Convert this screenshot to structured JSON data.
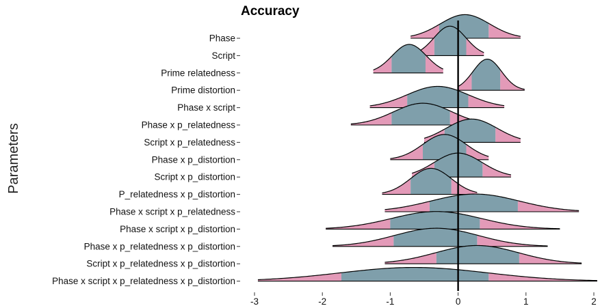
{
  "chart_data": {
    "type": "area",
    "subtype": "ridgeline",
    "title": "Accuracy",
    "xlabel": "",
    "ylabel": "Parameters",
    "xlim": [
      -3.0,
      2.0
    ],
    "xticks": [
      -3,
      -2,
      -1,
      0,
      1,
      2
    ],
    "reference_line_x": 0,
    "grid": false,
    "legend": "none",
    "colors": {
      "fill": "#7f9fab",
      "tail": "#e39ab8",
      "line": "#000000"
    },
    "series": [
      {
        "name": "Phase",
        "mean": 0.1,
        "inner": [
          -0.28,
          0.45
        ],
        "range": [
          -0.7,
          0.92
        ]
      },
      {
        "name": "Script",
        "mean": -0.12,
        "inner": [
          -0.35,
          0.12
        ],
        "range": [
          -0.65,
          0.38
        ]
      },
      {
        "name": "Prime relatedness",
        "mean": -0.72,
        "inner": [
          -0.98,
          -0.48
        ],
        "range": [
          -1.25,
          -0.22
        ]
      },
      {
        "name": "Prime distortion",
        "mean": 0.43,
        "inner": [
          0.2,
          0.62
        ],
        "range": [
          0.0,
          0.98
        ]
      },
      {
        "name": "Phase x script",
        "mean": -0.3,
        "inner": [
          -0.75,
          0.15
        ],
        "range": [
          -1.3,
          0.68
        ]
      },
      {
        "name": "Phase x p_relatedness",
        "mean": -0.52,
        "inner": [
          -0.98,
          -0.12
        ],
        "range": [
          -1.58,
          0.32
        ]
      },
      {
        "name": "Script x p_relatedness",
        "mean": 0.2,
        "inner": [
          -0.2,
          0.55
        ],
        "range": [
          -0.5,
          0.92
        ]
      },
      {
        "name": "Phase x p_distortion",
        "mean": -0.2,
        "inner": [
          -0.52,
          0.12
        ],
        "range": [
          -1.0,
          0.45
        ]
      },
      {
        "name": "Script x p_distortion",
        "mean": 0.0,
        "inner": [
          -0.35,
          0.36
        ],
        "range": [
          -0.68,
          0.78
        ]
      },
      {
        "name": "P_relatedness x p_distortion",
        "mean": -0.4,
        "inner": [
          -0.7,
          -0.1
        ],
        "range": [
          -1.12,
          0.28
        ]
      },
      {
        "name": "Phase x script x p_relatedness",
        "mean": 0.25,
        "inner": [
          -0.42,
          0.88
        ],
        "range": [
          -1.08,
          1.78
        ]
      },
      {
        "name": "Phase x script x p_distortion",
        "mean": -0.32,
        "inner": [
          -1.0,
          0.32
        ],
        "range": [
          -1.95,
          1.5
        ]
      },
      {
        "name": "Phase x p_relatedness x p_distortion",
        "mean": -0.32,
        "inner": [
          -0.95,
          0.28
        ],
        "range": [
          -1.85,
          1.32
        ]
      },
      {
        "name": "Script x p_relatedness x p_distortion",
        "mean": 0.28,
        "inner": [
          -0.32,
          0.9
        ],
        "range": [
          -1.08,
          1.82
        ]
      },
      {
        "name": "Phase x script x p_relatedness x p_distortion",
        "mean": -0.65,
        "inner": [
          -1.72,
          0.45
        ],
        "range": [
          -2.95,
          2.05
        ]
      }
    ]
  }
}
